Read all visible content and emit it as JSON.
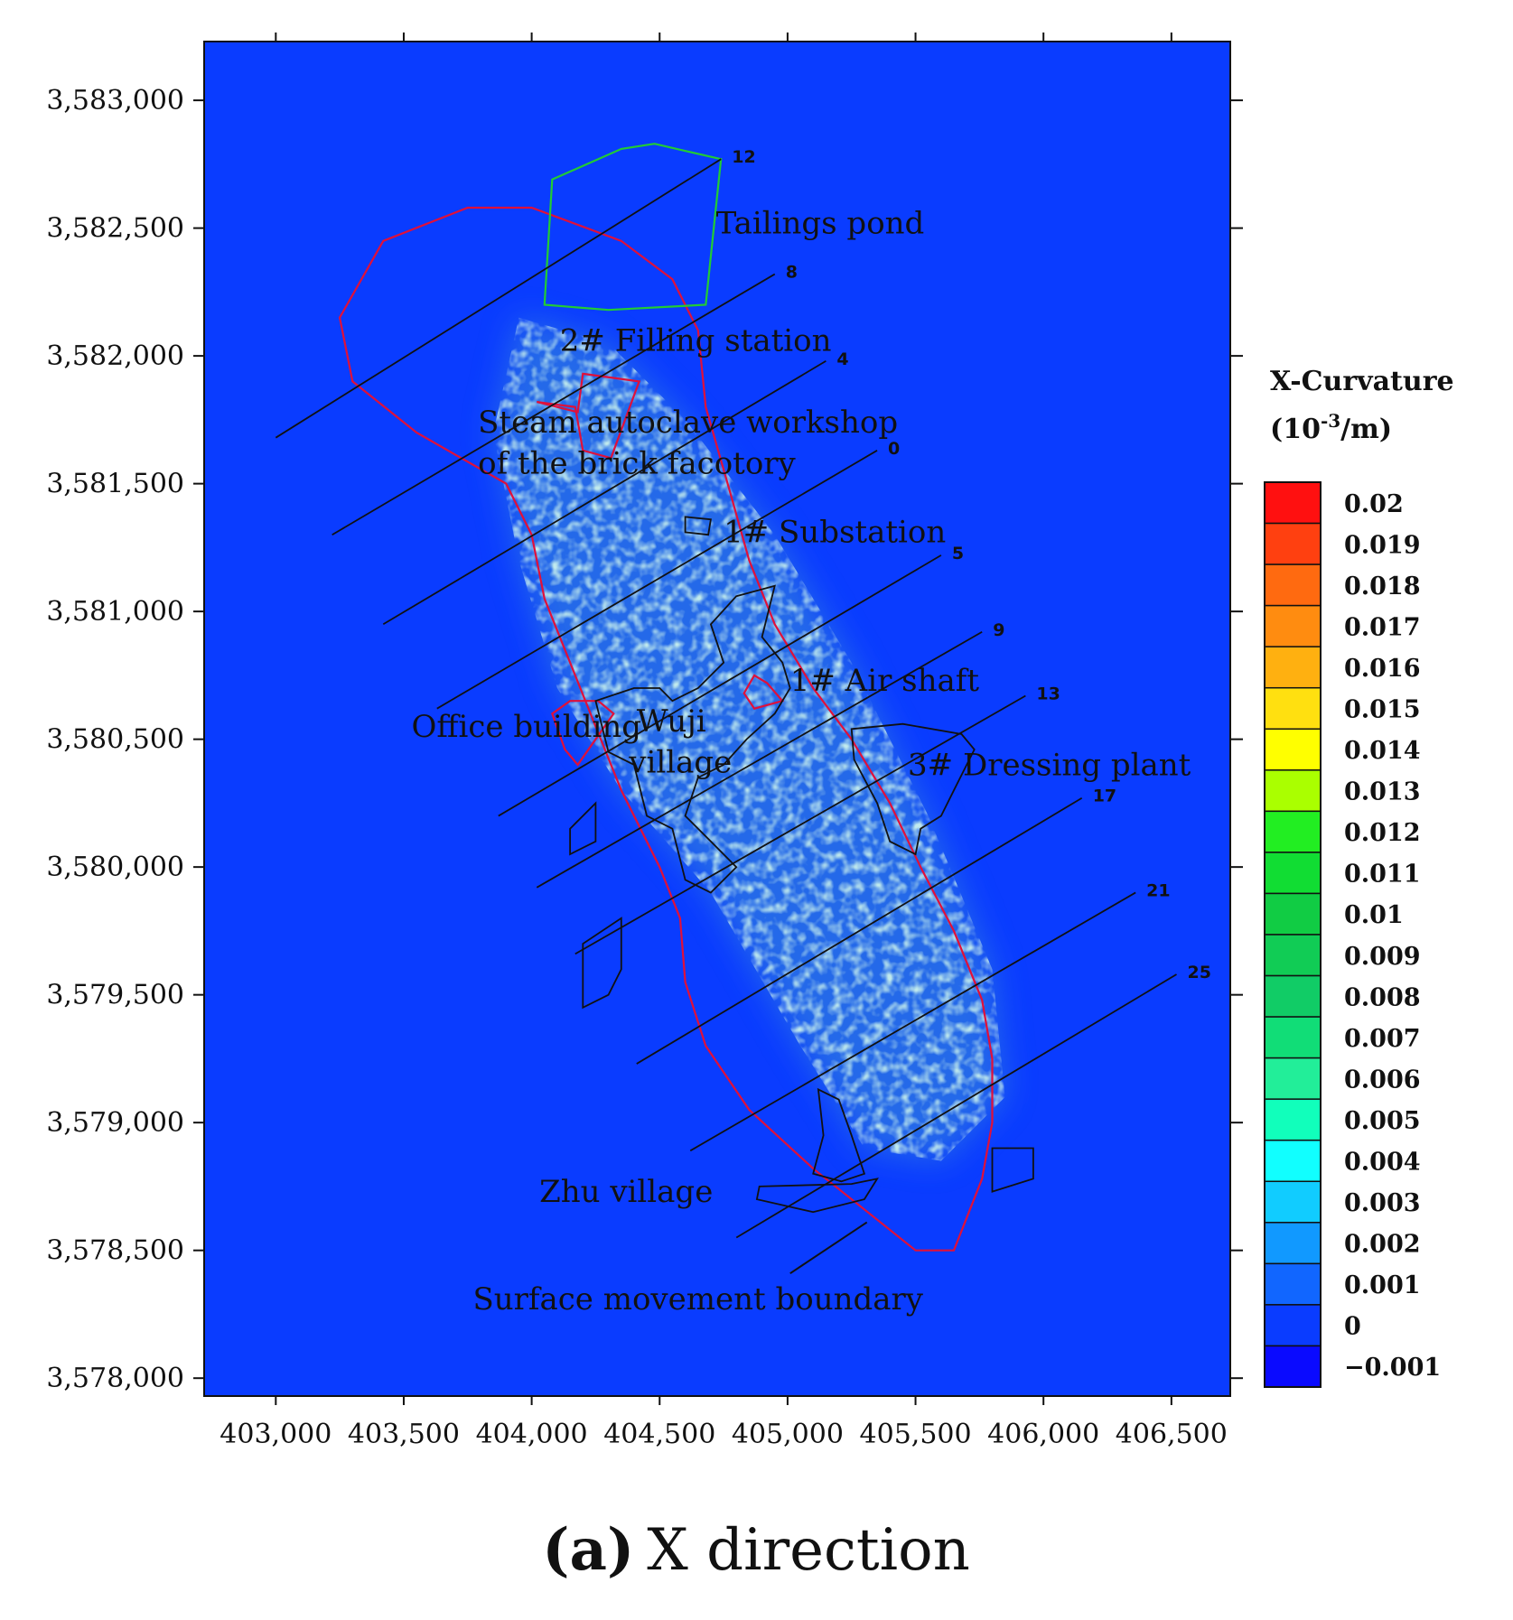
{
  "chart_data": {
    "type": "heatmap",
    "title": "",
    "xlabel": "",
    "ylabel": "",
    "xlim": [
      402720,
      406730
    ],
    "ylim": [
      3577930,
      3583230
    ],
    "x_ticks": [
      403000,
      403500,
      404000,
      404500,
      405000,
      405500,
      406000,
      406500
    ],
    "x_tick_labels": [
      "403,000",
      "403,500",
      "404,000",
      "404,500",
      "405,000",
      "405,500",
      "406,000",
      "406,500"
    ],
    "y_ticks": [
      3583000,
      3582500,
      3582000,
      3581500,
      3581000,
      3580500,
      3580000,
      3579500,
      3579000,
      3578500,
      3578000
    ],
    "y_tick_labels": [
      "3,583,000",
      "3,582,500",
      "3,582,000",
      "3,581,500",
      "3,581,000",
      "3,580,500",
      "3,580,000",
      "3,579,500",
      "3,579,000",
      "3,578,500",
      "3,578,000"
    ],
    "background_value": 0,
    "background_color": "#0a3cff",
    "colorbar": {
      "title_line1": "X-Curvature",
      "title_line2_base": "(10",
      "title_line2_exp": "-3",
      "title_line2_tail": "/m)",
      "labels": [
        "0.02",
        "0.019",
        "0.018",
        "0.017",
        "0.016",
        "0.015",
        "0.014",
        "0.013",
        "0.012",
        "0.011",
        "0.01",
        "0.009",
        "0.008",
        "0.007",
        "0.006",
        "0.005",
        "0.004",
        "0.003",
        "0.002",
        "0.001",
        "0",
        "−0.001"
      ],
      "colors": [
        "#ff1010",
        "#ff4010",
        "#ff6a10",
        "#ff8c10",
        "#ffb010",
        "#ffe010",
        "#ffff00",
        "#aaff00",
        "#22ee22",
        "#11dd33",
        "#11cc44",
        "#11cc55",
        "#11cc66",
        "#11dd77",
        "#22ee99",
        "#11ffbb",
        "#11ffff",
        "#11ccff",
        "#1199ff",
        "#1166ff",
        "#0a3cff",
        "#0a0aff"
      ]
    },
    "deformation_zone": [
      [
        403950,
        3582150
      ],
      [
        404300,
        3582050
      ],
      [
        404600,
        3581750
      ],
      [
        404950,
        3581300
      ],
      [
        405250,
        3580800
      ],
      [
        405550,
        3580200
      ],
      [
        405800,
        3579600
      ],
      [
        405850,
        3579100
      ],
      [
        405600,
        3578850
      ],
      [
        405300,
        3578900
      ],
      [
        405050,
        3579300
      ],
      [
        404700,
        3579900
      ],
      [
        404350,
        3580300
      ],
      [
        404100,
        3580700
      ],
      [
        403950,
        3581200
      ],
      [
        403850,
        3581700
      ]
    ],
    "surface_movement_boundary": [
      [
        403750,
        3582580
      ],
      [
        404000,
        3582580
      ],
      [
        404350,
        3582450
      ],
      [
        404550,
        3582300
      ],
      [
        404650,
        3582100
      ],
      [
        404680,
        3581800
      ],
      [
        404780,
        3581450
      ],
      [
        404850,
        3581200
      ],
      [
        404950,
        3580950
      ],
      [
        405100,
        3580700
      ],
      [
        405250,
        3580500
      ],
      [
        405400,
        3580250
      ],
      [
        405520,
        3580000
      ],
      [
        405650,
        3579750
      ],
      [
        405760,
        3579480
      ],
      [
        405800,
        3579250
      ],
      [
        405800,
        3579000
      ],
      [
        405760,
        3578780
      ],
      [
        405650,
        3578500
      ],
      [
        405500,
        3578500
      ],
      [
        405350,
        3578620
      ],
      [
        405100,
        3578820
      ],
      [
        404850,
        3579050
      ],
      [
        404680,
        3579300
      ],
      [
        404600,
        3579550
      ],
      [
        404580,
        3579800
      ],
      [
        404500,
        3580000
      ],
      [
        404350,
        3580300
      ],
      [
        404250,
        3580550
      ],
      [
        404150,
        3580800
      ],
      [
        404050,
        3581050
      ],
      [
        404000,
        3581300
      ],
      [
        403900,
        3581500
      ],
      [
        403550,
        3581700
      ],
      [
        403300,
        3581900
      ],
      [
        403250,
        3582150
      ],
      [
        403420,
        3582450
      ]
    ],
    "tailings_pond": [
      [
        404080,
        3582690
      ],
      [
        404350,
        3582810
      ],
      [
        404480,
        3582830
      ],
      [
        404740,
        3582770
      ],
      [
        404680,
        3582200
      ],
      [
        404300,
        3582180
      ],
      [
        404050,
        3582200
      ]
    ],
    "red_polygons": [
      [
        [
          404200,
          3581930
        ],
        [
          404420,
          3581900
        ],
        [
          404310,
          3581600
        ],
        [
          404200,
          3581630
        ],
        [
          404170,
          3581800
        ],
        [
          404020,
          3581820
        ],
        [
          404180,
          3581780
        ]
      ],
      [
        [
          404150,
          3580650
        ],
        [
          404260,
          3580650
        ],
        [
          404320,
          3580600
        ],
        [
          404180,
          3580400
        ],
        [
          404130,
          3580460
        ],
        [
          404080,
          3580600
        ]
      ],
      [
        [
          404870,
          3580750
        ],
        [
          404920,
          3580720
        ],
        [
          404980,
          3580650
        ],
        [
          404870,
          3580620
        ],
        [
          404830,
          3580680
        ]
      ]
    ],
    "black_polygons": [
      [
        [
          404600,
          3581370
        ],
        [
          404700,
          3581360
        ],
        [
          404690,
          3581300
        ],
        [
          404600,
          3581310
        ]
      ],
      [
        [
          404800,
          3581060
        ],
        [
          404950,
          3581100
        ],
        [
          404900,
          3580900
        ],
        [
          404980,
          3580800
        ],
        [
          405010,
          3580700
        ],
        [
          404950,
          3580600
        ],
        [
          404840,
          3580500
        ],
        [
          404750,
          3580400
        ],
        [
          404650,
          3580350
        ],
        [
          404600,
          3580200
        ],
        [
          404700,
          3580100
        ],
        [
          404800,
          3580000
        ],
        [
          404700,
          3579900
        ],
        [
          404600,
          3579950
        ],
        [
          404550,
          3580150
        ],
        [
          404450,
          3580200
        ],
        [
          404400,
          3580400
        ],
        [
          404300,
          3580450
        ],
        [
          404250,
          3580650
        ],
        [
          404400,
          3580700
        ],
        [
          404500,
          3580700
        ],
        [
          404550,
          3580650
        ],
        [
          404650,
          3580700
        ],
        [
          404750,
          3580800
        ],
        [
          404700,
          3580950
        ]
      ],
      [
        [
          404150,
          3580150
        ],
        [
          404250,
          3580250
        ],
        [
          404250,
          3580100
        ],
        [
          404150,
          3580050
        ]
      ],
      [
        [
          404200,
          3579700
        ],
        [
          404350,
          3579800
        ],
        [
          404350,
          3579600
        ],
        [
          404300,
          3579500
        ],
        [
          404200,
          3579450
        ]
      ],
      [
        [
          405250,
          3580540
        ],
        [
          405450,
          3580560
        ],
        [
          405680,
          3580520
        ],
        [
          405730,
          3580460
        ],
        [
          405650,
          3580300
        ],
        [
          405600,
          3580200
        ],
        [
          405520,
          3580150
        ],
        [
          405500,
          3580050
        ],
        [
          405400,
          3580100
        ],
        [
          405350,
          3580250
        ],
        [
          405260,
          3580420
        ]
      ],
      [
        [
          405120,
          3579130
        ],
        [
          405200,
          3579090
        ],
        [
          405250,
          3578950
        ],
        [
          405300,
          3578800
        ],
        [
          405210,
          3578770
        ],
        [
          405100,
          3578800
        ],
        [
          405140,
          3578950
        ]
      ],
      [
        [
          404890,
          3578750
        ],
        [
          405250,
          3578760
        ],
        [
          405350,
          3578780
        ],
        [
          405300,
          3578700
        ],
        [
          405100,
          3578650
        ],
        [
          404880,
          3578700
        ]
      ],
      [
        [
          405800,
          3578900
        ],
        [
          405960,
          3578900
        ],
        [
          405960,
          3578780
        ],
        [
          405800,
          3578730
        ]
      ]
    ],
    "survey_lines": [
      {
        "label": "12",
        "from": [
          403000,
          3581680
        ],
        "to": [
          404740,
          3582770
        ]
      },
      {
        "label": "8",
        "from": [
          403220,
          3581300
        ],
        "to": [
          404950,
          3582320
        ]
      },
      {
        "label": "4",
        "from": [
          403420,
          3580950
        ],
        "to": [
          405150,
          3581980
        ]
      },
      {
        "label": "0",
        "from": [
          403630,
          3580620
        ],
        "to": [
          405350,
          3581630
        ]
      },
      {
        "label": "5",
        "from": [
          403870,
          3580200
        ],
        "to": [
          405600,
          3581220
        ]
      },
      {
        "label": "9",
        "from": [
          404020,
          3579920
        ],
        "to": [
          405760,
          3580920
        ]
      },
      {
        "label": "13",
        "from": [
          404170,
          3579660
        ],
        "to": [
          405930,
          3580670
        ]
      },
      {
        "label": "17",
        "from": [
          404410,
          3579230
        ],
        "to": [
          406150,
          3580270
        ]
      },
      {
        "label": "21",
        "from": [
          404620,
          3578890
        ],
        "to": [
          406360,
          3579900
        ]
      },
      {
        "label": "25",
        "from": [
          404800,
          3578550
        ],
        "to": [
          406520,
          3579580
        ]
      }
    ],
    "annotations": [
      {
        "text": "Tailings pond",
        "x": 404720,
        "y": 3582480
      },
      {
        "text": "2# Filling station",
        "x": 404110,
        "y": 3582020
      },
      {
        "text": "Steam autoclave workshop",
        "x": 403790,
        "y": 3581700
      },
      {
        "text": "of the brick facotory",
        "x": 403790,
        "y": 3581540
      },
      {
        "text": "1# Substation",
        "x": 404750,
        "y": 3581270
      },
      {
        "text": "1# Air shaft",
        "x": 405010,
        "y": 3580690
      },
      {
        "text": "Office building",
        "x": 403530,
        "y": 3580510
      },
      {
        "text": "Wuji",
        "x": 404410,
        "y": 3580530
      },
      {
        "text": "village",
        "x": 404380,
        "y": 3580370
      },
      {
        "text": "3# Dressing plant",
        "x": 405470,
        "y": 3580360
      },
      {
        "text": "Zhu village",
        "x": 404030,
        "y": 3578690
      },
      {
        "text": "Surface movement boundary",
        "x": 403770,
        "y": 3578270
      }
    ]
  },
  "caption": {
    "letter": "(a)",
    "text": "X direction"
  }
}
